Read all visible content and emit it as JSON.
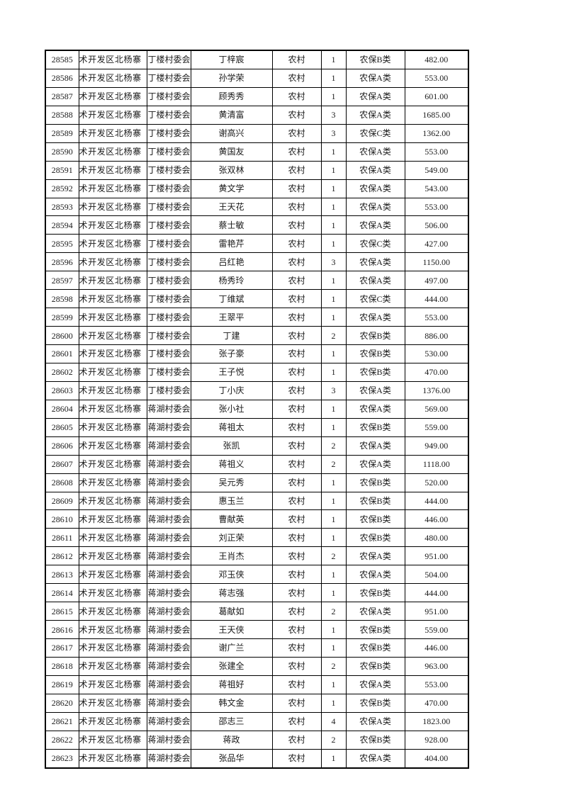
{
  "page": {
    "background_color": "#ffffff",
    "text_color": "#1a1a1a",
    "grid_color": "#000000"
  },
  "table": {
    "column_keys": [
      "serial-number",
      "district",
      "village-committee",
      "person-name",
      "residence-type",
      "person-count",
      "insurance-category",
      "amount"
    ],
    "rows": [
      [
        "28585",
        "术开发区北杨寨",
        "丁楼村委会",
        "丁梓宸",
        "农村",
        "1",
        "农保B类",
        "482.00"
      ],
      [
        "28586",
        "术开发区北杨寨",
        "丁楼村委会",
        "孙学荣",
        "农村",
        "1",
        "农保A类",
        "553.00"
      ],
      [
        "28587",
        "术开发区北杨寨",
        "丁楼村委会",
        "顾秀秀",
        "农村",
        "1",
        "农保A类",
        "601.00"
      ],
      [
        "28588",
        "术开发区北杨寨",
        "丁楼村委会",
        "黄清富",
        "农村",
        "3",
        "农保A类",
        "1685.00"
      ],
      [
        "28589",
        "术开发区北杨寨",
        "丁楼村委会",
        "谢高兴",
        "农村",
        "3",
        "农保C类",
        "1362.00"
      ],
      [
        "28590",
        "术开发区北杨寨",
        "丁楼村委会",
        "黄国友",
        "农村",
        "1",
        "农保A类",
        "553.00"
      ],
      [
        "28591",
        "术开发区北杨寨",
        "丁楼村委会",
        "张双林",
        "农村",
        "1",
        "农保A类",
        "549.00"
      ],
      [
        "28592",
        "术开发区北杨寨",
        "丁楼村委会",
        "黄文学",
        "农村",
        "1",
        "农保A类",
        "543.00"
      ],
      [
        "28593",
        "术开发区北杨寨",
        "丁楼村委会",
        "王天花",
        "农村",
        "1",
        "农保A类",
        "553.00"
      ],
      [
        "28594",
        "术开发区北杨寨",
        "丁楼村委会",
        "蔡士敏",
        "农村",
        "1",
        "农保A类",
        "506.00"
      ],
      [
        "28595",
        "术开发区北杨寨",
        "丁楼村委会",
        "雷艳芹",
        "农村",
        "1",
        "农保C类",
        "427.00"
      ],
      [
        "28596",
        "术开发区北杨寨",
        "丁楼村委会",
        "吕红艳",
        "农村",
        "3",
        "农保A类",
        "1150.00"
      ],
      [
        "28597",
        "术开发区北杨寨",
        "丁楼村委会",
        "杨秀玲",
        "农村",
        "1",
        "农保A类",
        "497.00"
      ],
      [
        "28598",
        "术开发区北杨寨",
        "丁楼村委会",
        "丁维斌",
        "农村",
        "1",
        "农保C类",
        "444.00"
      ],
      [
        "28599",
        "术开发区北杨寨",
        "丁楼村委会",
        "王翠平",
        "农村",
        "1",
        "农保A类",
        "553.00"
      ],
      [
        "28600",
        "术开发区北杨寨",
        "丁楼村委会",
        "丁建",
        "农村",
        "2",
        "农保B类",
        "886.00"
      ],
      [
        "28601",
        "术开发区北杨寨",
        "丁楼村委会",
        "张子豪",
        "农村",
        "1",
        "农保B类",
        "530.00"
      ],
      [
        "28602",
        "术开发区北杨寨",
        "丁楼村委会",
        "王子悦",
        "农村",
        "1",
        "农保B类",
        "470.00"
      ],
      [
        "28603",
        "术开发区北杨寨",
        "丁楼村委会",
        "丁小庆",
        "农村",
        "3",
        "农保A类",
        "1376.00"
      ],
      [
        "28604",
        "术开发区北杨寨",
        "蒋湖村委会",
        "张小社",
        "农村",
        "1",
        "农保A类",
        "569.00"
      ],
      [
        "28605",
        "术开发区北杨寨",
        "蒋湖村委会",
        "蒋祖太",
        "农村",
        "1",
        "农保B类",
        "559.00"
      ],
      [
        "28606",
        "术开发区北杨寨",
        "蒋湖村委会",
        "张凯",
        "农村",
        "2",
        "农保A类",
        "949.00"
      ],
      [
        "28607",
        "术开发区北杨寨",
        "蒋湖村委会",
        "蒋祖义",
        "农村",
        "2",
        "农保A类",
        "1118.00"
      ],
      [
        "28608",
        "术开发区北杨寨",
        "蒋湖村委会",
        "吴元秀",
        "农村",
        "1",
        "农保B类",
        "520.00"
      ],
      [
        "28609",
        "术开发区北杨寨",
        "蒋湖村委会",
        "惠玉兰",
        "农村",
        "1",
        "农保B类",
        "444.00"
      ],
      [
        "28610",
        "术开发区北杨寨",
        "蒋湖村委会",
        "曹献英",
        "农村",
        "1",
        "农保B类",
        "446.00"
      ],
      [
        "28611",
        "术开发区北杨寨",
        "蒋湖村委会",
        "刘正荣",
        "农村",
        "1",
        "农保B类",
        "480.00"
      ],
      [
        "28612",
        "术开发区北杨寨",
        "蒋湖村委会",
        "王肖杰",
        "农村",
        "2",
        "农保A类",
        "951.00"
      ],
      [
        "28613",
        "术开发区北杨寨",
        "蒋湖村委会",
        "邓玉侠",
        "农村",
        "1",
        "农保A类",
        "504.00"
      ],
      [
        "28614",
        "术开发区北杨寨",
        "蒋湖村委会",
        "蒋志强",
        "农村",
        "1",
        "农保B类",
        "444.00"
      ],
      [
        "28615",
        "术开发区北杨寨",
        "蒋湖村委会",
        "葛献如",
        "农村",
        "2",
        "农保A类",
        "951.00"
      ],
      [
        "28616",
        "术开发区北杨寨",
        "蒋湖村委会",
        "王天侠",
        "农村",
        "1",
        "农保B类",
        "559.00"
      ],
      [
        "28617",
        "术开发区北杨寨",
        "蒋湖村委会",
        "谢广兰",
        "农村",
        "1",
        "农保B类",
        "446.00"
      ],
      [
        "28618",
        "术开发区北杨寨",
        "蒋湖村委会",
        "张建全",
        "农村",
        "2",
        "农保B类",
        "963.00"
      ],
      [
        "28619",
        "术开发区北杨寨",
        "蒋湖村委会",
        "蒋祖好",
        "农村",
        "1",
        "农保A类",
        "553.00"
      ],
      [
        "28620",
        "术开发区北杨寨",
        "蒋湖村委会",
        "韩文金",
        "农村",
        "1",
        "农保B类",
        "470.00"
      ],
      [
        "28621",
        "术开发区北杨寨",
        "蒋湖村委会",
        "邵志三",
        "农村",
        "4",
        "农保A类",
        "1823.00"
      ],
      [
        "28622",
        "术开发区北杨寨",
        "蒋湖村委会",
        "蒋政",
        "农村",
        "2",
        "农保B类",
        "928.00"
      ],
      [
        "28623",
        "术开发区北杨寨",
        "蒋湖村委会",
        "张品华",
        "农村",
        "1",
        "农保A类",
        "404.00"
      ]
    ]
  }
}
